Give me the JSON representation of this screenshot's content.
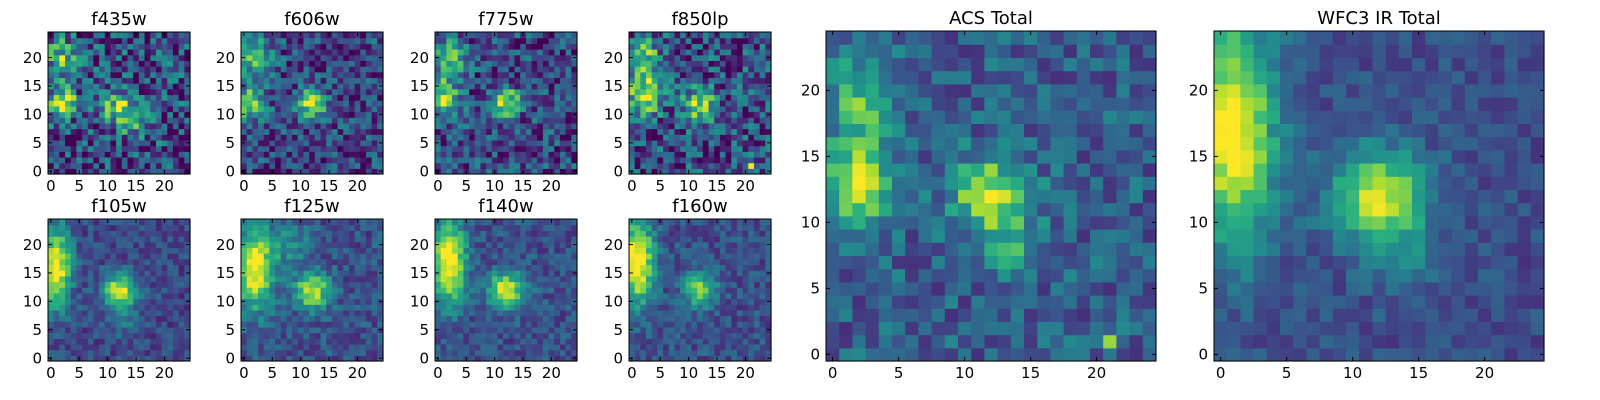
{
  "figure": {
    "colormap": "viridis"
  },
  "chart_data": [
    {
      "type": "heatmap",
      "title": "f435w",
      "grid_size": 25,
      "xlim": [
        0,
        24
      ],
      "ylim": [
        0,
        24
      ],
      "xticks": [
        0,
        5,
        10,
        15,
        20
      ],
      "yticks": [
        0,
        5,
        10,
        15,
        20
      ],
      "noise": 0.32,
      "base": 0.22,
      "sources": [
        {
          "x": 2,
          "y": 12,
          "amp": 0.75,
          "sx": 1.8,
          "sy": 2.0
        },
        {
          "x": 2,
          "y": 20,
          "amp": 0.5,
          "sx": 1.8,
          "sy": 2.5
        },
        {
          "x": 12,
          "y": 11,
          "amp": 0.6,
          "sx": 2.0,
          "sy": 2.0
        },
        {
          "x": 15,
          "y": 8,
          "amp": 0.25,
          "sx": 2.0,
          "sy": 2.0
        }
      ]
    },
    {
      "type": "heatmap",
      "title": "f606w",
      "grid_size": 25,
      "xlim": [
        0,
        24
      ],
      "ylim": [
        0,
        24
      ],
      "xticks": [
        0,
        5,
        10,
        15,
        20
      ],
      "yticks": [
        0,
        5,
        10,
        15,
        20
      ],
      "noise": 0.24,
      "base": 0.22,
      "sources": [
        {
          "x": 1,
          "y": 12,
          "amp": 0.6,
          "sx": 1.8,
          "sy": 2.0
        },
        {
          "x": 2,
          "y": 20,
          "amp": 0.45,
          "sx": 2.0,
          "sy": 2.5
        },
        {
          "x": 12,
          "y": 12,
          "amp": 0.7,
          "sx": 1.8,
          "sy": 1.8
        }
      ]
    },
    {
      "type": "heatmap",
      "title": "f775w",
      "grid_size": 25,
      "xlim": [
        0,
        24
      ],
      "ylim": [
        0,
        24
      ],
      "xticks": [
        0,
        5,
        10,
        15,
        20
      ],
      "yticks": [
        0,
        5,
        10,
        15,
        20
      ],
      "noise": 0.26,
      "base": 0.22,
      "sources": [
        {
          "x": 1,
          "y": 13,
          "amp": 0.6,
          "sx": 1.8,
          "sy": 2.2
        },
        {
          "x": 2,
          "y": 20,
          "amp": 0.5,
          "sx": 2.0,
          "sy": 2.5
        },
        {
          "x": 12,
          "y": 12,
          "amp": 0.72,
          "sx": 1.8,
          "sy": 1.8
        }
      ]
    },
    {
      "type": "heatmap",
      "title": "f850lp",
      "grid_size": 25,
      "xlim": [
        0,
        24
      ],
      "ylim": [
        0,
        24
      ],
      "xticks": [
        0,
        5,
        10,
        15,
        20
      ],
      "yticks": [
        0,
        5,
        10,
        15,
        20
      ],
      "noise": 0.3,
      "base": 0.24,
      "sources": [
        {
          "x": 2,
          "y": 14,
          "amp": 0.65,
          "sx": 2.2,
          "sy": 3.0
        },
        {
          "x": 2,
          "y": 21,
          "amp": 0.45,
          "sx": 2.0,
          "sy": 2.0
        },
        {
          "x": 12,
          "y": 12,
          "amp": 0.65,
          "sx": 2.0,
          "sy": 2.0
        },
        {
          "x": 21,
          "y": 1,
          "amp": 0.7,
          "sx": 0.5,
          "sy": 0.5
        }
      ]
    },
    {
      "type": "heatmap",
      "title": "f105w",
      "grid_size": 25,
      "xlim": [
        0,
        24
      ],
      "ylim": [
        0,
        24
      ],
      "xticks": [
        0,
        5,
        10,
        15,
        20
      ],
      "yticks": [
        0,
        5,
        10,
        15,
        20
      ],
      "noise": 0.13,
      "base": 0.22,
      "sources": [
        {
          "x": 1,
          "y": 16,
          "amp": 0.8,
          "sx": 1.8,
          "sy": 5.0
        },
        {
          "x": 12,
          "y": 12,
          "amp": 0.75,
          "sx": 2.0,
          "sy": 2.0
        },
        {
          "x": 13,
          "y": 7,
          "amp": 0.2,
          "sx": 2.0,
          "sy": 2.0
        }
      ]
    },
    {
      "type": "heatmap",
      "title": "f125w",
      "grid_size": 25,
      "xlim": [
        0,
        24
      ],
      "ylim": [
        0,
        24
      ],
      "xticks": [
        0,
        5,
        10,
        15,
        20
      ],
      "yticks": [
        0,
        5,
        10,
        15,
        20
      ],
      "noise": 0.14,
      "base": 0.25,
      "sources": [
        {
          "x": 2,
          "y": 16,
          "amp": 0.78,
          "sx": 2.2,
          "sy": 5.0
        },
        {
          "x": 12,
          "y": 12,
          "amp": 0.7,
          "sx": 2.2,
          "sy": 2.2
        },
        {
          "x": 8,
          "y": 20,
          "amp": 0.25,
          "sx": 2.5,
          "sy": 2.5
        }
      ]
    },
    {
      "type": "heatmap",
      "title": "f140w",
      "grid_size": 25,
      "xlim": [
        0,
        24
      ],
      "ylim": [
        0,
        24
      ],
      "xticks": [
        0,
        5,
        10,
        15,
        20
      ],
      "yticks": [
        0,
        5,
        10,
        15,
        20
      ],
      "noise": 0.13,
      "base": 0.25,
      "sources": [
        {
          "x": 2,
          "y": 17,
          "amp": 0.85,
          "sx": 2.0,
          "sy": 5.0
        },
        {
          "x": 12,
          "y": 12,
          "amp": 0.72,
          "sx": 2.2,
          "sy": 2.2
        }
      ]
    },
    {
      "type": "heatmap",
      "title": "f160w",
      "grid_size": 25,
      "xlim": [
        0,
        24
      ],
      "ylim": [
        0,
        24
      ],
      "xticks": [
        0,
        5,
        10,
        15,
        20
      ],
      "yticks": [
        0,
        5,
        10,
        15,
        20
      ],
      "noise": 0.13,
      "base": 0.25,
      "sources": [
        {
          "x": 1,
          "y": 17,
          "amp": 0.85,
          "sx": 2.0,
          "sy": 5.0
        },
        {
          "x": 12,
          "y": 12,
          "amp": 0.6,
          "sx": 2.0,
          "sy": 2.0
        }
      ]
    },
    {
      "type": "heatmap",
      "title": "ACS Total",
      "grid_size": 25,
      "xlim": [
        0,
        24
      ],
      "ylim": [
        0,
        24
      ],
      "xticks": [
        0,
        5,
        10,
        15,
        20
      ],
      "yticks": [
        0,
        5,
        10,
        15,
        20
      ],
      "noise": 0.17,
      "base": 0.3,
      "sources": [
        {
          "x": 2,
          "y": 13,
          "amp": 0.65,
          "sx": 1.6,
          "sy": 2.0
        },
        {
          "x": 2,
          "y": 19,
          "amp": 0.4,
          "sx": 1.8,
          "sy": 2.5
        },
        {
          "x": 12,
          "y": 12,
          "amp": 0.65,
          "sx": 2.0,
          "sy": 2.0
        },
        {
          "x": 14,
          "y": 8,
          "amp": 0.25,
          "sx": 1.5,
          "sy": 1.5
        },
        {
          "x": 21,
          "y": 1,
          "amp": 0.45,
          "sx": 0.5,
          "sy": 0.5
        }
      ]
    },
    {
      "type": "heatmap",
      "title": "WFC3 IR Total",
      "grid_size": 25,
      "xlim": [
        0,
        24
      ],
      "ylim": [
        0,
        24
      ],
      "xticks": [
        0,
        5,
        10,
        15,
        20
      ],
      "yticks": [
        0,
        5,
        10,
        15,
        20
      ],
      "noise": 0.1,
      "base": 0.24,
      "sources": [
        {
          "x": 1,
          "y": 17,
          "amp": 0.8,
          "sx": 2.2,
          "sy": 6.0
        },
        {
          "x": 12,
          "y": 12,
          "amp": 0.7,
          "sx": 2.5,
          "sy": 2.5
        },
        {
          "x": 14,
          "y": 7,
          "amp": 0.15,
          "sx": 2.0,
          "sy": 2.0
        }
      ]
    }
  ]
}
